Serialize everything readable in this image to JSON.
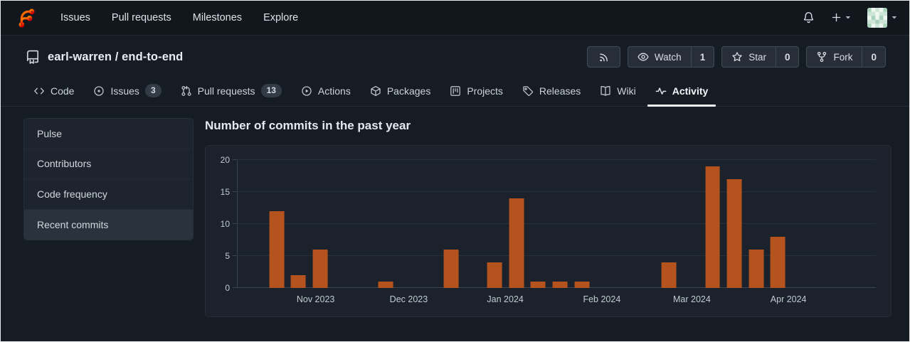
{
  "navbar": {
    "links": [
      "Issues",
      "Pull requests",
      "Milestones",
      "Explore"
    ],
    "right_icons": [
      "bell-icon",
      "plus-icon",
      "chevron-down-icon",
      "avatar",
      "chevron-down-icon"
    ]
  },
  "repo": {
    "title": "earl-warren / end-to-end",
    "icon": "repo-icon",
    "actions": {
      "rss": {
        "icon": "rss-icon"
      },
      "watch": {
        "icon": "eye-icon",
        "label": "Watch",
        "count": "1"
      },
      "star": {
        "icon": "star-icon",
        "label": "Star",
        "count": "0"
      },
      "fork": {
        "icon": "fork-icon",
        "label": "Fork",
        "count": "0"
      }
    }
  },
  "tabs": [
    {
      "label": "Code",
      "icon": "code-icon"
    },
    {
      "label": "Issues",
      "icon": "issue-icon",
      "count": "3"
    },
    {
      "label": "Pull requests",
      "icon": "pull-request-icon",
      "count": "13"
    },
    {
      "label": "Actions",
      "icon": "actions-icon"
    },
    {
      "label": "Packages",
      "icon": "package-icon"
    },
    {
      "label": "Projects",
      "icon": "project-icon"
    },
    {
      "label": "Releases",
      "icon": "tag-icon"
    },
    {
      "label": "Wiki",
      "icon": "wiki-icon"
    },
    {
      "label": "Activity",
      "icon": "activity-icon",
      "active": true
    }
  ],
  "sidebar": {
    "items": [
      {
        "label": "Pulse"
      },
      {
        "label": "Contributors"
      },
      {
        "label": "Code frequency"
      },
      {
        "label": "Recent commits",
        "active": true
      }
    ]
  },
  "main": {
    "heading": "Number of commits in the past year"
  },
  "chart_data": {
    "type": "bar",
    "title": "Number of commits in the past year",
    "xlabel": "",
    "ylabel": "",
    "ylim": [
      0,
      20
    ],
    "yticks": [
      0,
      5,
      10,
      15,
      20
    ],
    "grid": true,
    "legend_position": "none",
    "bar_color": "#b4531e",
    "x_unit": "week",
    "bars": [
      {
        "week": 0,
        "count": 12
      },
      {
        "week": 1,
        "count": 2
      },
      {
        "week": 2,
        "count": 6
      },
      {
        "week": 5,
        "count": 1
      },
      {
        "week": 8,
        "count": 6
      },
      {
        "week": 10,
        "count": 4
      },
      {
        "week": 11,
        "count": 14
      },
      {
        "week": 12,
        "count": 1
      },
      {
        "week": 13,
        "count": 1
      },
      {
        "week": 14,
        "count": 1
      },
      {
        "week": 18,
        "count": 4
      },
      {
        "week": 20,
        "count": 19
      },
      {
        "week": 21,
        "count": 17
      },
      {
        "week": 22,
        "count": 6
      },
      {
        "week": 23,
        "count": 8
      }
    ],
    "month_ticks": [
      {
        "label": "Nov 2023",
        "week": 1.79
      },
      {
        "label": "Dec 2023",
        "week": 6.06
      },
      {
        "label": "Jan 2024",
        "week": 10.49
      },
      {
        "label": "Feb 2024",
        "week": 14.92
      },
      {
        "label": "Mar 2024",
        "week": 19.05
      },
      {
        "label": "Apr 2024",
        "week": 23.48
      }
    ],
    "axis": {
      "start_week": -1.82,
      "end_week": 27.49,
      "bar_width_weeks": 0.68
    }
  }
}
